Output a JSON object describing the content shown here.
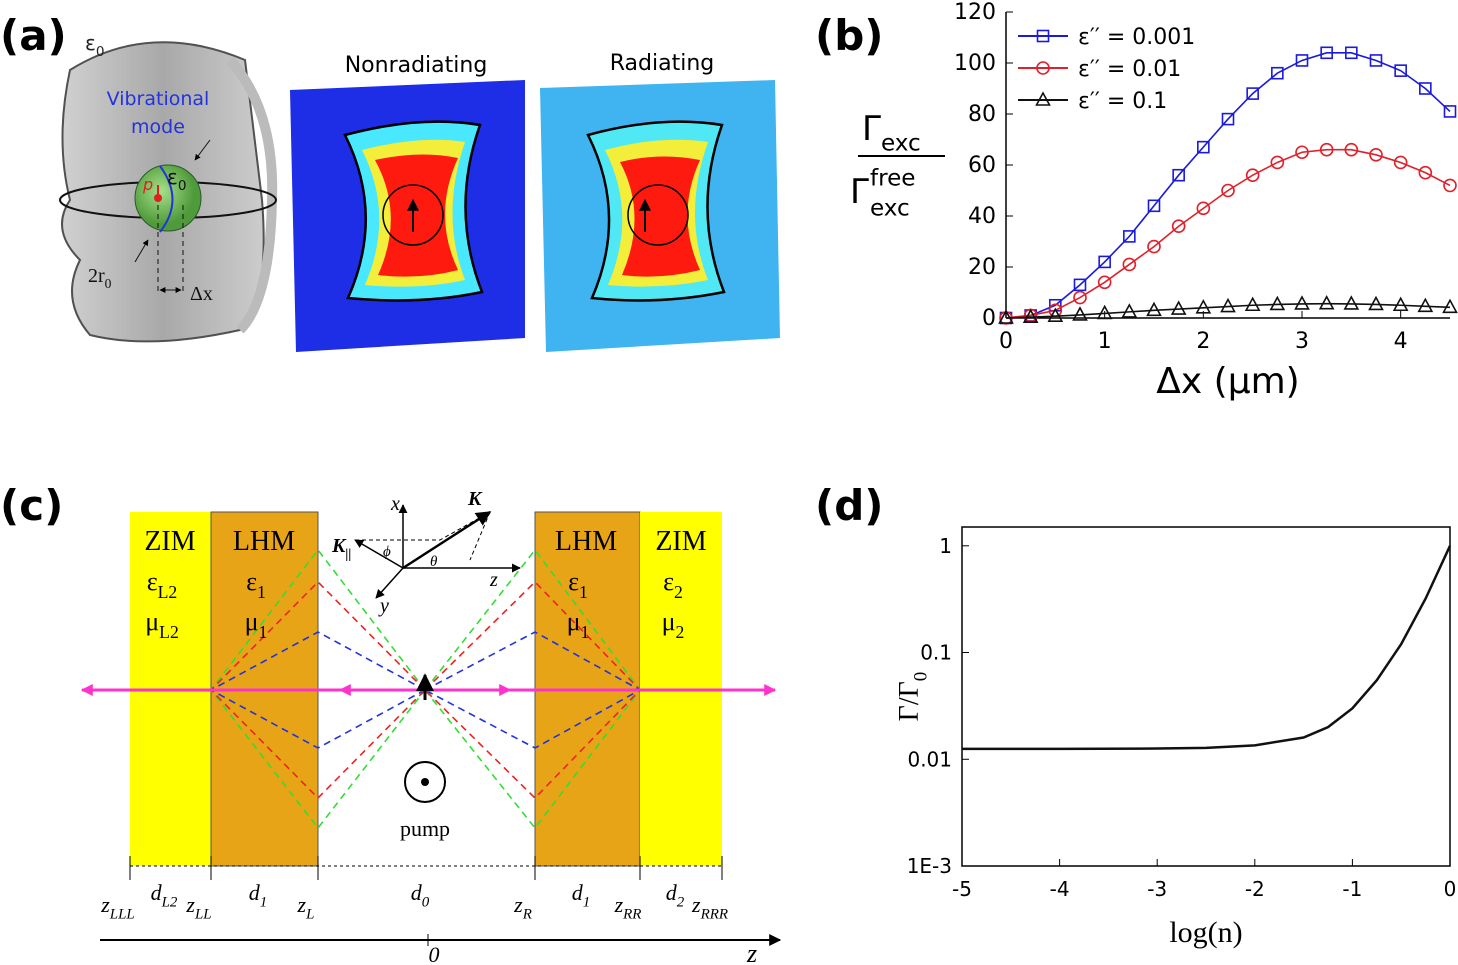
{
  "panel_labels": [
    "(a)",
    "(b)",
    "(c)",
    "(d)"
  ],
  "panel_a": {
    "medium": {
      "base": "ε",
      "sub": "0"
    },
    "mode_label": [
      "Vibrational",
      "mode"
    ],
    "sphere": {
      "base": "ε",
      "sub": "0"
    },
    "dipole": "p",
    "radius": {
      "base": "2r",
      "sub": "0"
    },
    "shift": "Δx",
    "map_titles": [
      "Nonradiating",
      "Radiating"
    ]
  },
  "chart_data": [
    {
      "type": "line",
      "xlabel": "Δx (μm)",
      "ylabel": {
        "numerator": {
          "base": "Γ",
          "sub": "exc"
        },
        "denominator": {
          "base": "Γ",
          "sub": "exc",
          "sup": "free"
        }
      },
      "x": [
        0,
        0.25,
        0.5,
        0.75,
        1,
        1.25,
        1.5,
        1.75,
        2,
        2.25,
        2.5,
        2.75,
        3,
        3.25,
        3.5,
        3.75,
        4,
        4.25,
        4.5
      ],
      "xlim": [
        0,
        4.5
      ],
      "xticks": [
        0,
        1,
        2,
        3,
        4
      ],
      "ylim": [
        0,
        120
      ],
      "yticks": [
        0,
        20,
        40,
        60,
        80,
        100,
        120
      ],
      "legend": "upper left",
      "series": [
        {
          "name": "ε′′ = 0.001",
          "color": "#1a1adb",
          "marker": "square",
          "values": [
            0,
            1,
            5,
            13,
            22,
            32,
            44,
            56,
            67,
            78,
            88,
            96,
            101,
            104,
            104,
            101,
            97,
            90,
            81
          ]
        },
        {
          "name": "ε′′ = 0.01",
          "color": "#e0202a",
          "marker": "circle",
          "values": [
            0,
            1,
            3,
            8,
            14,
            21,
            28,
            36,
            43,
            50,
            56,
            61,
            65,
            66,
            66,
            64,
            61,
            57,
            52
          ]
        },
        {
          "name": "ε′′ = 0.1",
          "color": "#111111",
          "marker": "triangle",
          "values": [
            0,
            0.3,
            0.7,
            1.2,
            1.8,
            2.4,
            3,
            3.5,
            4,
            4.5,
            5,
            5.3,
            5.5,
            5.6,
            5.5,
            5.3,
            5,
            4.6,
            4.2
          ]
        }
      ]
    },
    {
      "type": "line",
      "xlabel": "log(n)",
      "ylabel": {
        "base": "Γ/Γ",
        "sub": "0"
      },
      "yscale": "log",
      "x": [
        -5,
        -4,
        -3,
        -2.5,
        -2,
        -1.5,
        -1.25,
        -1,
        -0.75,
        -0.5,
        -0.25,
        0
      ],
      "xlim": [
        -5,
        0
      ],
      "xticks": [
        -5,
        -4,
        -3,
        -2,
        -1,
        0
      ],
      "ylim": [
        0.001,
        1.5
      ],
      "yticks": [
        {
          "value": 0.001,
          "label": "1E-3"
        },
        0.01,
        0.1,
        1
      ],
      "series": [
        {
          "color": "#111111",
          "values": [
            0.0125,
            0.0125,
            0.0126,
            0.0128,
            0.0135,
            0.016,
            0.02,
            0.03,
            0.055,
            0.12,
            0.32,
            1
          ]
        }
      ]
    }
  ],
  "panel_c": {
    "layers": [
      {
        "name": "ZIM",
        "eps": {
          "base": "ε",
          "sub": "L2"
        },
        "mu": {
          "base": "μ",
          "sub": "L2"
        }
      },
      {
        "name": "LHM",
        "eps": {
          "base": "ε",
          "sub": "1"
        },
        "mu": {
          "base": "μ",
          "sub": "1"
        }
      },
      {
        "name": "LHM",
        "eps": {
          "base": "ε",
          "sub": "1"
        },
        "mu": {
          "base": "μ",
          "sub": "1"
        }
      },
      {
        "name": "ZIM",
        "eps": {
          "base": "ε",
          "sub": "2"
        },
        "mu": {
          "base": "μ",
          "sub": "2"
        }
      }
    ],
    "axes": {
      "x": "x",
      "y": "y",
      "z": "z",
      "k_parallel": {
        "base": "K",
        "sub": "||"
      },
      "k": "K",
      "phi": "ϕ",
      "theta": "θ"
    },
    "pump": "pump",
    "boundaries": [
      {
        "base": "z",
        "sub": "LLL"
      },
      {
        "base": "z",
        "sub": "LL"
      },
      {
        "base": "z",
        "sub": "L"
      },
      {
        "base": "z",
        "sub": "R"
      },
      {
        "base": "z",
        "sub": "RR"
      },
      {
        "base": "z",
        "sub": "RRR"
      }
    ],
    "thicknesses": [
      {
        "base": "d",
        "sub": "L2"
      },
      {
        "base": "d",
        "sub": "1"
      },
      {
        "base": "d",
        "sub": "0"
      },
      {
        "base": "d",
        "sub": "1"
      },
      {
        "base": "d",
        "sub": "2"
      }
    ],
    "origin": "0",
    "axis_label": "z"
  }
}
